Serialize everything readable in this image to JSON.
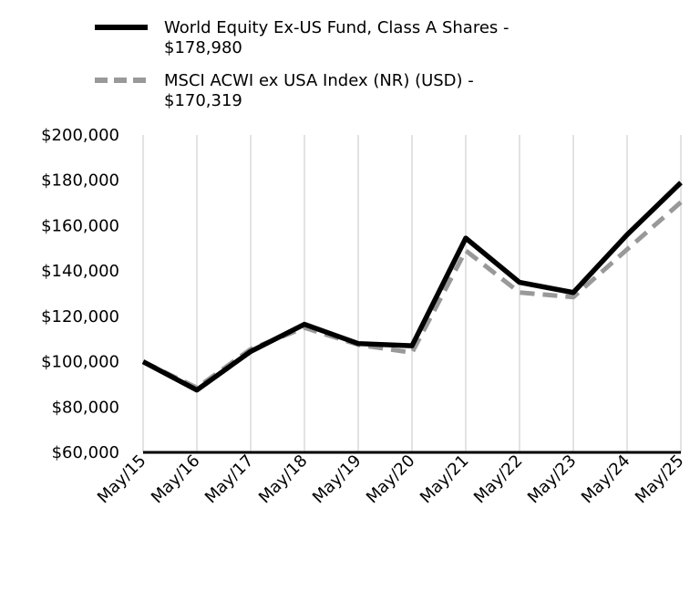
{
  "chart_data": {
    "type": "line",
    "categories": [
      "May/15",
      "May/16",
      "May/17",
      "May/18",
      "May/19",
      "May/20",
      "May/21",
      "May/22",
      "May/23",
      "May/24",
      "May/25"
    ],
    "series": [
      {
        "name": "World Equity Ex-US Fund, Class A Shares - $178,980",
        "name_lines": [
          "World Equity Ex-US Fund, Class A Shares -",
          "$178,980"
        ],
        "values": [
          100000,
          87500,
          104500,
          116500,
          108000,
          107000,
          154500,
          135000,
          130500,
          156000,
          178980
        ],
        "color": "#000000",
        "style": "solid"
      },
      {
        "name": "MSCI ACWI ex USA Index (NR) (USD) - $170,319",
        "name_lines": [
          "MSCI ACWI ex USA Index (NR) (USD) -",
          "$170,319"
        ],
        "values": [
          100000,
          88500,
          105500,
          115000,
          107500,
          104000,
          149000,
          130500,
          128500,
          149500,
          170319
        ],
        "color": "#999999",
        "style": "dashed"
      }
    ],
    "y_ticks": [
      "$200,000",
      "$180,000",
      "$160,000",
      "$140,000",
      "$120,000",
      "$100,000",
      "$80,000",
      "$60,000"
    ],
    "ylim": [
      60000,
      200000
    ],
    "grid": "vertical",
    "legend_position": "top",
    "title": "",
    "xlabel": "",
    "ylabel": ""
  }
}
